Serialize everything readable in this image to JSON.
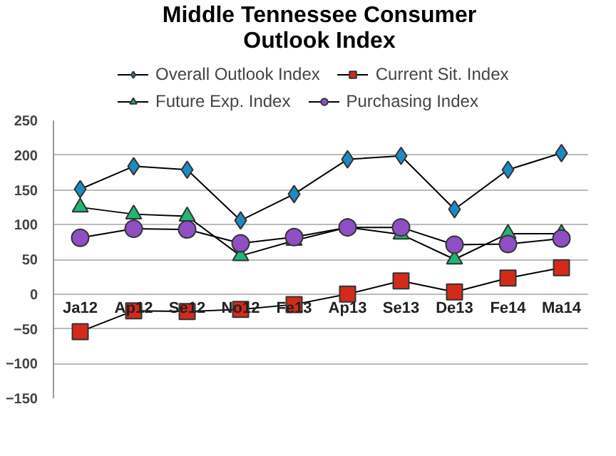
{
  "chart_data": {
    "type": "line",
    "title": "Middle Tennessee Consumer Outlook Index",
    "categories": [
      "Ja12",
      "Ap12",
      "Se12",
      "No12",
      "Fe13",
      "Ap13",
      "Se13",
      "De13",
      "Fe14",
      "Ma14"
    ],
    "series": [
      {
        "name": "Overall Outlook Index",
        "color": "#1f8ac0",
        "marker": "diamond",
        "values": [
          151,
          184,
          179,
          106,
          144,
          194,
          199,
          122,
          179,
          203
        ]
      },
      {
        "name": "Current Sit. Index",
        "color": "#d42a1c",
        "marker": "square",
        "values": [
          -54,
          -24,
          -25,
          -22,
          -15,
          0,
          19,
          3,
          23,
          38
        ]
      },
      {
        "name": "Future Exp. Index",
        "color": "#22b573",
        "marker": "triangle",
        "values": [
          125,
          115,
          112,
          55,
          77,
          96,
          86,
          50,
          87,
          87
        ]
      },
      {
        "name": "Purchasing Index",
        "color": "#8e4fc2",
        "marker": "circle",
        "values": [
          81,
          94,
          93,
          73,
          82,
          96,
          96,
          71,
          72,
          80
        ]
      }
    ],
    "ylim": [
      -150,
      250
    ],
    "yticks": [
      -150,
      -100,
      -50,
      0,
      50,
      100,
      150,
      200,
      250
    ],
    "grid": "y",
    "legend": "top"
  }
}
